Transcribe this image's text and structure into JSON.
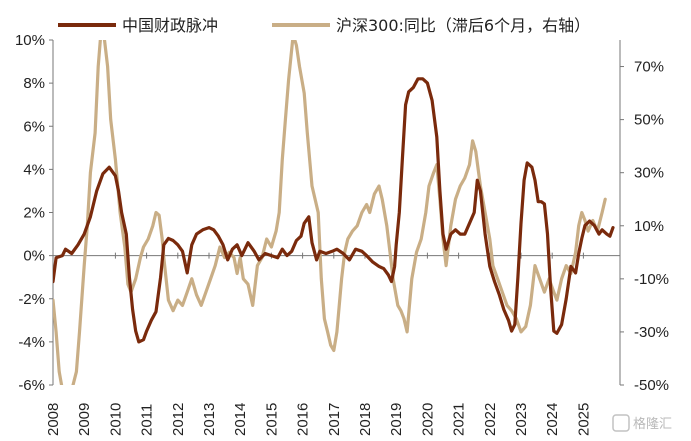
{
  "chart_data": {
    "type": "line",
    "title": "",
    "xlabel": "",
    "ylabel": "",
    "x_tick_labels": [
      "2008",
      "2009",
      "2010",
      "2011",
      "2012",
      "2013",
      "2014",
      "2015",
      "2016",
      "2017",
      "2018",
      "2019",
      "2020",
      "2021",
      "2022",
      "2023",
      "2024",
      "2025"
    ],
    "left_axis": {
      "min": -6,
      "max": 10,
      "ticks": [
        -6,
        -4,
        -2,
        0,
        2,
        4,
        6,
        8,
        10
      ],
      "tick_labels": [
        "-6%",
        "-4%",
        "-2%",
        "0%",
        "2%",
        "4%",
        "6%",
        "8%",
        "10%"
      ]
    },
    "right_axis": {
      "min": -50,
      "max": 80,
      "ticks": [
        -50,
        -30,
        -10,
        10,
        30,
        50,
        70
      ],
      "tick_labels": [
        "-50%",
        "-30%",
        "-10%",
        "10%",
        "30%",
        "50%",
        "70%"
      ]
    },
    "legend_position": "top",
    "grid": false,
    "series": [
      {
        "name": "中国财政脉冲",
        "axis": "left",
        "color": "#7a2a0c",
        "points": [
          [
            2008.0,
            -1.2
          ],
          [
            2008.1,
            -0.1
          ],
          [
            2008.3,
            0.0
          ],
          [
            2008.4,
            0.3
          ],
          [
            2008.6,
            0.1
          ],
          [
            2008.8,
            0.5
          ],
          [
            2009.0,
            1.0
          ],
          [
            2009.2,
            1.8
          ],
          [
            2009.4,
            3.0
          ],
          [
            2009.6,
            3.8
          ],
          [
            2009.8,
            4.1
          ],
          [
            2010.0,
            3.7
          ],
          [
            2010.1,
            3.0
          ],
          [
            2010.2,
            2.0
          ],
          [
            2010.35,
            1.0
          ],
          [
            2010.45,
            -1.0
          ],
          [
            2010.55,
            -2.5
          ],
          [
            2010.65,
            -3.5
          ],
          [
            2010.75,
            -4.0
          ],
          [
            2010.9,
            -3.9
          ],
          [
            2011.0,
            -3.5
          ],
          [
            2011.15,
            -3.0
          ],
          [
            2011.3,
            -2.6
          ],
          [
            2011.45,
            -1.0
          ],
          [
            2011.55,
            0.5
          ],
          [
            2011.7,
            0.8
          ],
          [
            2011.85,
            0.7
          ],
          [
            2012.0,
            0.5
          ],
          [
            2012.15,
            0.2
          ],
          [
            2012.3,
            -0.8
          ],
          [
            2012.45,
            0.5
          ],
          [
            2012.6,
            1.0
          ],
          [
            2012.8,
            1.2
          ],
          [
            2013.0,
            1.3
          ],
          [
            2013.15,
            1.2
          ],
          [
            2013.3,
            0.9
          ],
          [
            2013.45,
            0.5
          ],
          [
            2013.6,
            -0.2
          ],
          [
            2013.75,
            0.3
          ],
          [
            2013.9,
            0.5
          ],
          [
            2014.05,
            0.0
          ],
          [
            2014.25,
            0.6
          ],
          [
            2014.45,
            0.2
          ],
          [
            2014.6,
            -0.2
          ],
          [
            2014.8,
            0.1
          ],
          [
            2015.0,
            0.0
          ],
          [
            2015.2,
            -0.1
          ],
          [
            2015.35,
            0.3
          ],
          [
            2015.5,
            0.0
          ],
          [
            2015.65,
            0.2
          ],
          [
            2015.8,
            0.7
          ],
          [
            2015.95,
            0.9
          ],
          [
            2016.05,
            1.5
          ],
          [
            2016.2,
            1.8
          ],
          [
            2016.3,
            0.6
          ],
          [
            2016.45,
            -0.2
          ],
          [
            2016.55,
            0.2
          ],
          [
            2016.75,
            0.1
          ],
          [
            2016.95,
            0.2
          ],
          [
            2017.1,
            0.3
          ],
          [
            2017.3,
            0.1
          ],
          [
            2017.5,
            -0.2
          ],
          [
            2017.7,
            0.3
          ],
          [
            2017.9,
            0.2
          ],
          [
            2018.05,
            0.0
          ],
          [
            2018.25,
            -0.3
          ],
          [
            2018.45,
            -0.5
          ],
          [
            2018.6,
            -0.6
          ],
          [
            2018.75,
            -0.9
          ],
          [
            2018.85,
            -1.2
          ],
          [
            2018.95,
            -0.5
          ],
          [
            2019.0,
            0.5
          ],
          [
            2019.1,
            2.0
          ],
          [
            2019.2,
            4.5
          ],
          [
            2019.3,
            7.0
          ],
          [
            2019.4,
            7.6
          ],
          [
            2019.55,
            7.8
          ],
          [
            2019.7,
            8.2
          ],
          [
            2019.85,
            8.2
          ],
          [
            2020.0,
            8.0
          ],
          [
            2020.15,
            7.2
          ],
          [
            2020.3,
            5.5
          ],
          [
            2020.4,
            3.0
          ],
          [
            2020.5,
            1.0
          ],
          [
            2020.6,
            0.3
          ],
          [
            2020.75,
            1.0
          ],
          [
            2020.9,
            1.2
          ],
          [
            2021.05,
            1.0
          ],
          [
            2021.2,
            1.0
          ],
          [
            2021.35,
            1.5
          ],
          [
            2021.5,
            2.0
          ],
          [
            2021.6,
            3.5
          ],
          [
            2021.7,
            3.0
          ],
          [
            2021.85,
            1.0
          ],
          [
            2022.0,
            -0.5
          ],
          [
            2022.15,
            -1.2
          ],
          [
            2022.3,
            -1.8
          ],
          [
            2022.45,
            -2.5
          ],
          [
            2022.6,
            -3.0
          ],
          [
            2022.7,
            -3.5
          ],
          [
            2022.8,
            -3.2
          ],
          [
            2022.9,
            -1.0
          ],
          [
            2023.0,
            1.5
          ],
          [
            2023.1,
            3.5
          ],
          [
            2023.2,
            4.3
          ],
          [
            2023.35,
            4.1
          ],
          [
            2023.45,
            3.5
          ],
          [
            2023.55,
            2.5
          ],
          [
            2023.65,
            2.5
          ],
          [
            2023.75,
            2.4
          ],
          [
            2023.85,
            1.0
          ],
          [
            2023.95,
            -1.5
          ],
          [
            2024.05,
            -3.5
          ],
          [
            2024.15,
            -3.6
          ],
          [
            2024.3,
            -3.2
          ],
          [
            2024.45,
            -2.0
          ],
          [
            2024.6,
            -0.5
          ],
          [
            2024.75,
            -0.8
          ],
          [
            2024.85,
            0.1
          ],
          [
            2024.95,
            0.8
          ],
          [
            2025.05,
            1.4
          ],
          [
            2025.2,
            1.6
          ],
          [
            2025.35,
            1.4
          ],
          [
            2025.5,
            1.0
          ],
          [
            2025.6,
            1.2
          ],
          [
            2025.75,
            1.0
          ],
          [
            2025.85,
            0.9
          ],
          [
            2025.95,
            1.3
          ]
        ]
      },
      {
        "name": "沪深300:同比（滞后6个月，右轴）",
        "axis": "right",
        "color": "#c9ae86",
        "points": [
          [
            2008.0,
            -18
          ],
          [
            2008.1,
            -30
          ],
          [
            2008.2,
            -45
          ],
          [
            2008.35,
            -55
          ],
          [
            2008.5,
            -60
          ],
          [
            2008.6,
            -52
          ],
          [
            2008.75,
            -45
          ],
          [
            2008.85,
            -30
          ],
          [
            2009.0,
            -5
          ],
          [
            2009.1,
            10
          ],
          [
            2009.2,
            30
          ],
          [
            2009.35,
            45
          ],
          [
            2009.45,
            70
          ],
          [
            2009.55,
            85
          ],
          [
            2009.65,
            80
          ],
          [
            2009.75,
            70
          ],
          [
            2009.85,
            50
          ],
          [
            2010.0,
            35
          ],
          [
            2010.15,
            15
          ],
          [
            2010.3,
            2
          ],
          [
            2010.4,
            -12
          ],
          [
            2010.5,
            -15
          ],
          [
            2010.65,
            -10
          ],
          [
            2010.8,
            -2
          ],
          [
            2010.9,
            2
          ],
          [
            2011.05,
            5
          ],
          [
            2011.2,
            10
          ],
          [
            2011.3,
            15
          ],
          [
            2011.4,
            14
          ],
          [
            2011.5,
            5
          ],
          [
            2011.55,
            -2
          ],
          [
            2011.7,
            -18
          ],
          [
            2011.85,
            -22
          ],
          [
            2012.0,
            -18
          ],
          [
            2012.15,
            -20
          ],
          [
            2012.3,
            -15
          ],
          [
            2012.45,
            -10
          ],
          [
            2012.6,
            -16
          ],
          [
            2012.75,
            -20
          ],
          [
            2012.9,
            -15
          ],
          [
            2013.05,
            -10
          ],
          [
            2013.2,
            -5
          ],
          [
            2013.35,
            2
          ],
          [
            2013.5,
            -2
          ],
          [
            2013.65,
            0
          ],
          [
            2013.8,
            -2
          ],
          [
            2013.9,
            -8
          ],
          [
            2014.0,
            -2
          ],
          [
            2014.1,
            -10
          ],
          [
            2014.25,
            -12
          ],
          [
            2014.4,
            -20
          ],
          [
            2014.55,
            -5
          ],
          [
            2014.7,
            -2
          ],
          [
            2014.85,
            5
          ],
          [
            2015.0,
            2
          ],
          [
            2015.15,
            8
          ],
          [
            2015.25,
            15
          ],
          [
            2015.35,
            35
          ],
          [
            2015.45,
            50
          ],
          [
            2015.55,
            65
          ],
          [
            2015.7,
            82
          ],
          [
            2015.8,
            78
          ],
          [
            2015.9,
            70
          ],
          [
            2016.05,
            60
          ],
          [
            2016.15,
            45
          ],
          [
            2016.3,
            25
          ],
          [
            2016.5,
            15
          ],
          [
            2016.6,
            -10
          ],
          [
            2016.7,
            -25
          ],
          [
            2016.8,
            -30
          ],
          [
            2016.9,
            -35
          ],
          [
            2017.0,
            -37
          ],
          [
            2017.1,
            -30
          ],
          [
            2017.25,
            -10
          ],
          [
            2017.35,
            0
          ],
          [
            2017.45,
            5
          ],
          [
            2017.6,
            8
          ],
          [
            2017.75,
            10
          ],
          [
            2017.9,
            15
          ],
          [
            2018.05,
            18
          ],
          [
            2018.15,
            15
          ],
          [
            2018.3,
            22
          ],
          [
            2018.45,
            25
          ],
          [
            2018.55,
            20
          ],
          [
            2018.7,
            10
          ],
          [
            2018.8,
            0
          ],
          [
            2018.9,
            -10
          ],
          [
            2019.05,
            -20
          ],
          [
            2019.15,
            -22
          ],
          [
            2019.25,
            -25
          ],
          [
            2019.35,
            -30
          ],
          [
            2019.5,
            -10
          ],
          [
            2019.65,
            0
          ],
          [
            2019.8,
            5
          ],
          [
            2019.95,
            15
          ],
          [
            2020.05,
            25
          ],
          [
            2020.2,
            30
          ],
          [
            2020.3,
            33
          ],
          [
            2020.4,
            20
          ],
          [
            2020.5,
            5
          ],
          [
            2020.6,
            -5
          ],
          [
            2020.75,
            10
          ],
          [
            2020.9,
            20
          ],
          [
            2021.05,
            25
          ],
          [
            2021.2,
            28
          ],
          [
            2021.35,
            33
          ],
          [
            2021.45,
            42
          ],
          [
            2021.55,
            38
          ],
          [
            2021.7,
            25
          ],
          [
            2021.85,
            15
          ],
          [
            2022.0,
            5
          ],
          [
            2022.1,
            -5
          ],
          [
            2022.25,
            -10
          ],
          [
            2022.4,
            -15
          ],
          [
            2022.55,
            -20
          ],
          [
            2022.7,
            -22
          ],
          [
            2022.85,
            -25
          ],
          [
            2023.0,
            -30
          ],
          [
            2023.15,
            -28
          ],
          [
            2023.3,
            -20
          ],
          [
            2023.45,
            -5
          ],
          [
            2023.6,
            -10
          ],
          [
            2023.75,
            -15
          ],
          [
            2023.9,
            -10
          ],
          [
            2024.05,
            -15
          ],
          [
            2024.15,
            -18
          ],
          [
            2024.3,
            -10
          ],
          [
            2024.45,
            -5
          ],
          [
            2024.6,
            -8
          ],
          [
            2024.75,
            0
          ],
          [
            2024.85,
            10
          ],
          [
            2024.95,
            15
          ],
          [
            2025.05,
            12
          ],
          [
            2025.15,
            8
          ],
          [
            2025.3,
            12
          ],
          [
            2025.45,
            8
          ],
          [
            2025.6,
            15
          ],
          [
            2025.7,
            20
          ]
        ]
      }
    ]
  }
}
